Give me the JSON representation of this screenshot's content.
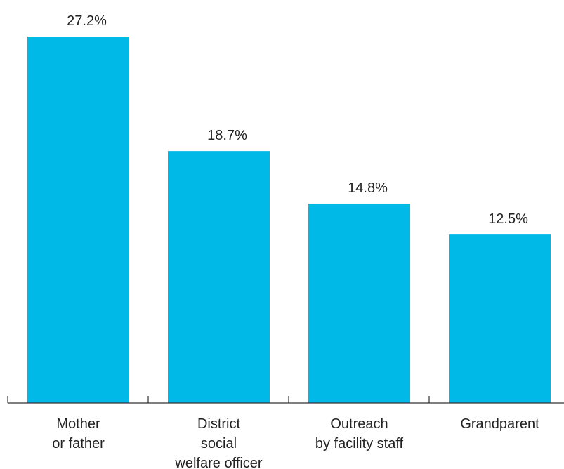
{
  "chart_data": {
    "type": "bar",
    "categories": [
      [
        "Mother",
        "or father"
      ],
      [
        "District",
        "social",
        "welfare officer"
      ],
      [
        "Outreach",
        "by facility staff"
      ],
      [
        "Grandparent"
      ]
    ],
    "values": [
      27.2,
      18.7,
      14.8,
      12.5
    ],
    "value_labels": [
      "27.2%",
      "18.7%",
      "14.8%",
      "12.5%"
    ],
    "bar_color": "#00B9E6",
    "axis_color": "#333333",
    "grid": false
  }
}
